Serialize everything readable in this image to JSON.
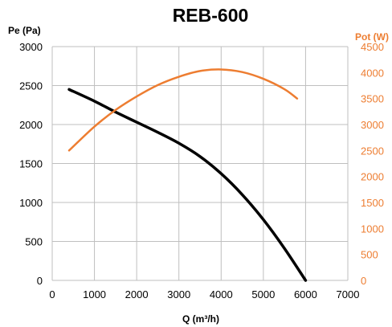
{
  "chart_data": {
    "type": "line",
    "title": "REB-600",
    "xlabel": "Q (m³/h)",
    "ylabel": "Pe (Pa)",
    "y2label": "Pot (W)",
    "xlim": [
      0,
      7000
    ],
    "ylim": [
      0,
      3000
    ],
    "y2lim": [
      0,
      4500
    ],
    "x_ticks": [
      "0",
      "1000",
      "2000",
      "3000",
      "4000",
      "5000",
      "6000",
      "7000"
    ],
    "y_ticks": [
      "0",
      "500",
      "1000",
      "1500",
      "2000",
      "2500",
      "3000"
    ],
    "y2_ticks": [
      "0",
      "500",
      "1000",
      "1500",
      "2000",
      "2500",
      "3000",
      "3500",
      "4000",
      "4500"
    ],
    "grid": true,
    "colors": {
      "pressure": "#000000",
      "power": "#ed7d31"
    },
    "series": [
      {
        "axis": "left",
        "color": "#000000",
        "x": [
          400,
          1000,
          1500,
          2000,
          2500,
          3000,
          3500,
          4000,
          4500,
          5000,
          5500,
          6000
        ],
        "values": [
          2450,
          2300,
          2160,
          2030,
          1900,
          1760,
          1590,
          1370,
          1100,
          780,
          410,
          0
        ]
      },
      {
        "axis": "right",
        "color": "#ed7d31",
        "x": [
          400,
          1000,
          1500,
          2000,
          2500,
          3000,
          3500,
          4000,
          4500,
          5000,
          5500,
          5800
        ],
        "values": [
          2500,
          2960,
          3280,
          3540,
          3760,
          3920,
          4030,
          4060,
          4010,
          3880,
          3680,
          3500
        ]
      }
    ]
  }
}
